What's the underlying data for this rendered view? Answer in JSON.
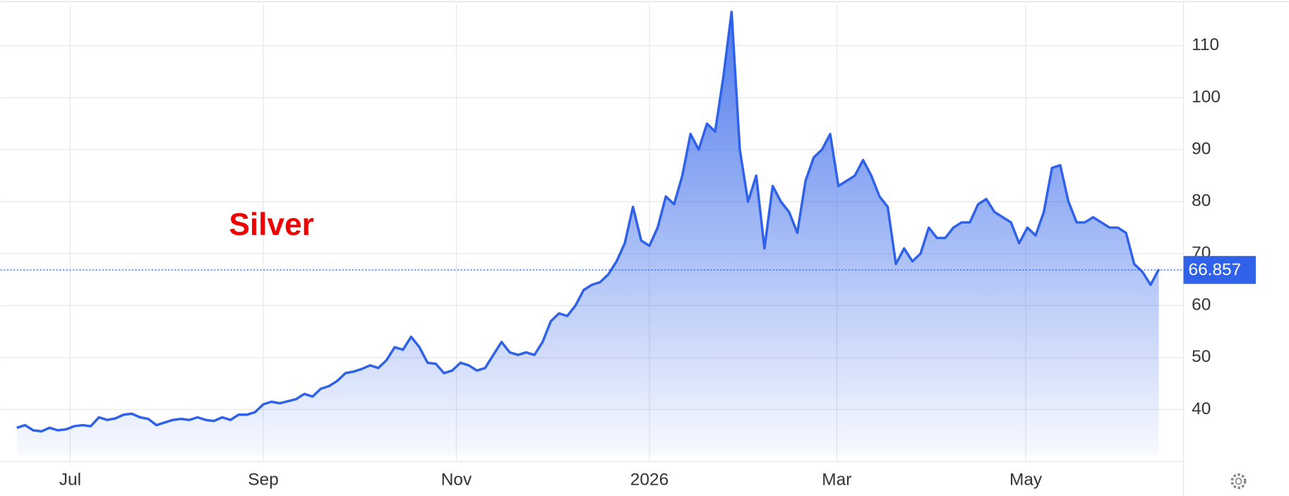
{
  "chart_data": {
    "type": "area",
    "title": "Silver",
    "color": "#2f62e9",
    "grid": true,
    "last_value": 66.857,
    "ylim": [
      30,
      118
    ],
    "yticks": [
      40,
      50,
      60,
      70,
      80,
      90,
      100,
      110
    ],
    "xlim": [
      0,
      142
    ],
    "xticks": [
      {
        "value": 6.5,
        "label": "Jul"
      },
      {
        "value": 30,
        "label": "Sep"
      },
      {
        "value": 53.5,
        "label": "Nov"
      },
      {
        "value": 77,
        "label": "2026"
      },
      {
        "value": 99.8,
        "label": "Mar"
      },
      {
        "value": 122.8,
        "label": "May"
      }
    ],
    "values": [
      36.5,
      37,
      36,
      35.8,
      36.5,
      36,
      36.2,
      36.8,
      37,
      36.8,
      38.5,
      38,
      38.3,
      39,
      39.2,
      38.5,
      38.2,
      37,
      37.5,
      38,
      38.2,
      38,
      38.5,
      38,
      37.8,
      38.5,
      38,
      39,
      39,
      39.5,
      41,
      41.5,
      41.2,
      41.6,
      42,
      43,
      42.5,
      44,
      44.5,
      45.5,
      47,
      47.3,
      47.8,
      48.5,
      48,
      49.5,
      52,
      51.5,
      54,
      52,
      49,
      48.8,
      47,
      47.5,
      49,
      48.5,
      47.5,
      48,
      50.5,
      53,
      51,
      50.5,
      51,
      50.5,
      53,
      57,
      58.5,
      58,
      60,
      63,
      64,
      64.5,
      66,
      68.5,
      72,
      79,
      72.5,
      71.5,
      75,
      81,
      79.5,
      85,
      93,
      90,
      95,
      93.5,
      104,
      116.5,
      90,
      80,
      85,
      71,
      83,
      80,
      78,
      74,
      84,
      88.5,
      90,
      93,
      83,
      84,
      85,
      88,
      85,
      81,
      79,
      68,
      71,
      68.5,
      70,
      75,
      73,
      73,
      75,
      76,
      76,
      79.5,
      80.5,
      78,
      77,
      76,
      72,
      75,
      73.5,
      78,
      86.5,
      87,
      80,
      76,
      76,
      77,
      76,
      75,
      75,
      74,
      68,
      66.5,
      64,
      67
    ]
  }
}
